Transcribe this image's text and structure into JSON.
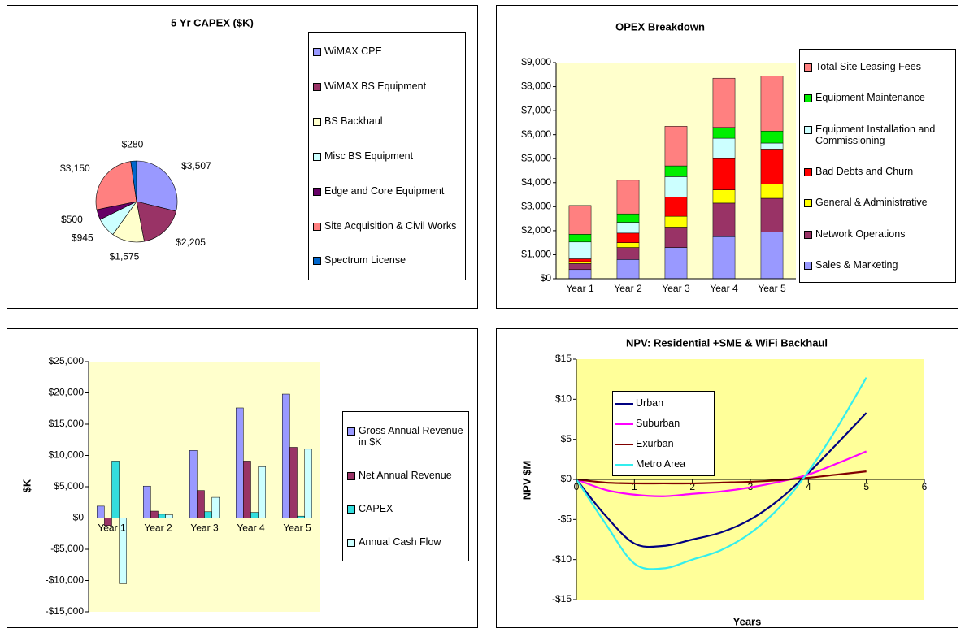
{
  "chart_data": [
    {
      "type": "pie",
      "title": "5 Yr CAPEX ($K)",
      "categories": [
        "WiMAX CPE",
        "WiMAX BS Equipment",
        "BS Backhaul",
        "Misc BS Equipment",
        "Edge and Core Equipment",
        "Site Acquisition & Civil Works",
        "Spectrum License"
      ],
      "values": [
        3507,
        2205,
        1575,
        945,
        500,
        3150,
        280
      ],
      "value_labels": [
        "$3,507",
        "$2,205",
        "$1,575",
        "$945",
        "$500",
        "$3,150",
        "$280"
      ],
      "colors": [
        "#9999ff",
        "#993366",
        "#ffffcc",
        "#ccffff",
        "#660066",
        "#ff8080",
        "#0066cc"
      ],
      "legend": "right"
    },
    {
      "type": "bar",
      "stacked": true,
      "title": "OPEX Breakdown",
      "categories": [
        "Year 1",
        "Year 2",
        "Year 3",
        "Year 4",
        "Year 5"
      ],
      "series": [
        {
          "name": "Sales & Marketing",
          "color": "#9999ff",
          "values": [
            380,
            800,
            1300,
            1750,
            1950
          ]
        },
        {
          "name": "Network Operations",
          "color": "#993366",
          "values": [
            250,
            500,
            850,
            1400,
            1400
          ]
        },
        {
          "name": "General & Administrative",
          "color": "#ffff00",
          "values": [
            80,
            200,
            450,
            550,
            600
          ]
        },
        {
          "name": "Bad Debts and Churn",
          "color": "#ff0000",
          "values": [
            120,
            400,
            800,
            1300,
            1450
          ]
        },
        {
          "name": "Equipment Installation and Commissioning",
          "color": "#ccffff",
          "values": [
            700,
            450,
            850,
            850,
            250
          ]
        },
        {
          "name": "Equipment Maintenance",
          "color": "#00ee00",
          "values": [
            320,
            350,
            450,
            450,
            500
          ]
        },
        {
          "name": "Total Site Leasing Fees",
          "color": "#ff8080",
          "values": [
            1200,
            1400,
            1650,
            2050,
            2300
          ]
        }
      ],
      "ylim": [
        0,
        9000
      ],
      "yticks": [
        {
          "value": 0,
          "label": "$0"
        },
        {
          "value": 1000,
          "label": "$1,000"
        },
        {
          "value": 2000,
          "label": "$2,000"
        },
        {
          "value": 3000,
          "label": "$3,000"
        },
        {
          "value": 4000,
          "label": "$4,000"
        },
        {
          "value": 5000,
          "label": "$5,000"
        },
        {
          "value": 6000,
          "label": "$6,000"
        },
        {
          "value": 7000,
          "label": "$7,000"
        },
        {
          "value": 8000,
          "label": "$8,000"
        },
        {
          "value": 9000,
          "label": "$9,000"
        }
      ],
      "legend": "right"
    },
    {
      "type": "bar",
      "y_label": "$K",
      "categories": [
        "Year 1",
        "Year 2",
        "Year 3",
        "Year 4",
        "Year 5"
      ],
      "series": [
        {
          "name": "Gross Annual Revenue in $K",
          "color": "#9999ff",
          "values": [
            1900,
            5100,
            10800,
            17600,
            19800
          ]
        },
        {
          "name": "Net Annual Revenue",
          "color": "#993366",
          "values": [
            -1200,
            1100,
            4400,
            9100,
            11300
          ]
        },
        {
          "name": "CAPEX",
          "color": "#33dddd",
          "values": [
            9100,
            600,
            1000,
            900,
            300
          ]
        },
        {
          "name": "Annual Cash Flow",
          "color": "#ccffff",
          "values": [
            -10500,
            500,
            3300,
            8200,
            11000
          ]
        }
      ],
      "ylim": [
        -15000,
        25000
      ],
      "yticks": [
        {
          "value": -15000,
          "label": "-$15,000"
        },
        {
          "value": -10000,
          "label": "-$10,000"
        },
        {
          "value": -5000,
          "label": "-$5,000"
        },
        {
          "value": 0,
          "label": "$0"
        },
        {
          "value": 5000,
          "label": "$5,000"
        },
        {
          "value": 10000,
          "label": "$10,000"
        },
        {
          "value": 15000,
          "label": "$15,000"
        },
        {
          "value": 20000,
          "label": "$20,000"
        },
        {
          "value": 25000,
          "label": "$25,000"
        }
      ],
      "legend": "right"
    },
    {
      "type": "line",
      "title": "NPV: Residential +SME & WiFi Backhaul",
      "x_label": "Years",
      "y_label": "NPV $M",
      "x": [
        0,
        0.5,
        1,
        1.5,
        2,
        2.5,
        3,
        3.5,
        4,
        4.5,
        5
      ],
      "series": [
        {
          "name": "Urban",
          "color": "#000080",
          "values": [
            0,
            -4.5,
            -8,
            -8.3,
            -7.5,
            -6.6,
            -5,
            -2.5,
            0.8,
            4.5,
            8.3
          ]
        },
        {
          "name": "Suburban",
          "color": "#ff00ff",
          "values": [
            0,
            -1.3,
            -1.9,
            -2.1,
            -1.8,
            -1.5,
            -1,
            -0.3,
            0.6,
            2,
            3.5
          ]
        },
        {
          "name": "Exurban",
          "color": "#800000",
          "values": [
            0,
            -0.4,
            -0.5,
            -0.5,
            -0.5,
            -0.4,
            -0.3,
            -0.1,
            0.2,
            0.6,
            1
          ]
        },
        {
          "name": "Metro Area",
          "color": "#33eeee",
          "values": [
            0,
            -5.5,
            -10.5,
            -11.1,
            -10,
            -8.8,
            -6.7,
            -3.5,
            1,
            6.5,
            12.7
          ]
        }
      ],
      "xlim": [
        0,
        6
      ],
      "xticks": [
        0,
        1,
        2,
        3,
        4,
        5,
        6
      ],
      "ylim": [
        -15,
        15
      ],
      "yticks": [
        {
          "value": -15,
          "label": "-$15"
        },
        {
          "value": -10,
          "label": "-$10"
        },
        {
          "value": -5,
          "label": "-$5"
        },
        {
          "value": 0,
          "label": "$0"
        },
        {
          "value": 5,
          "label": "$5"
        },
        {
          "value": 10,
          "label": "$10"
        },
        {
          "value": 15,
          "label": "$15"
        }
      ],
      "legend": "upper left"
    }
  ]
}
